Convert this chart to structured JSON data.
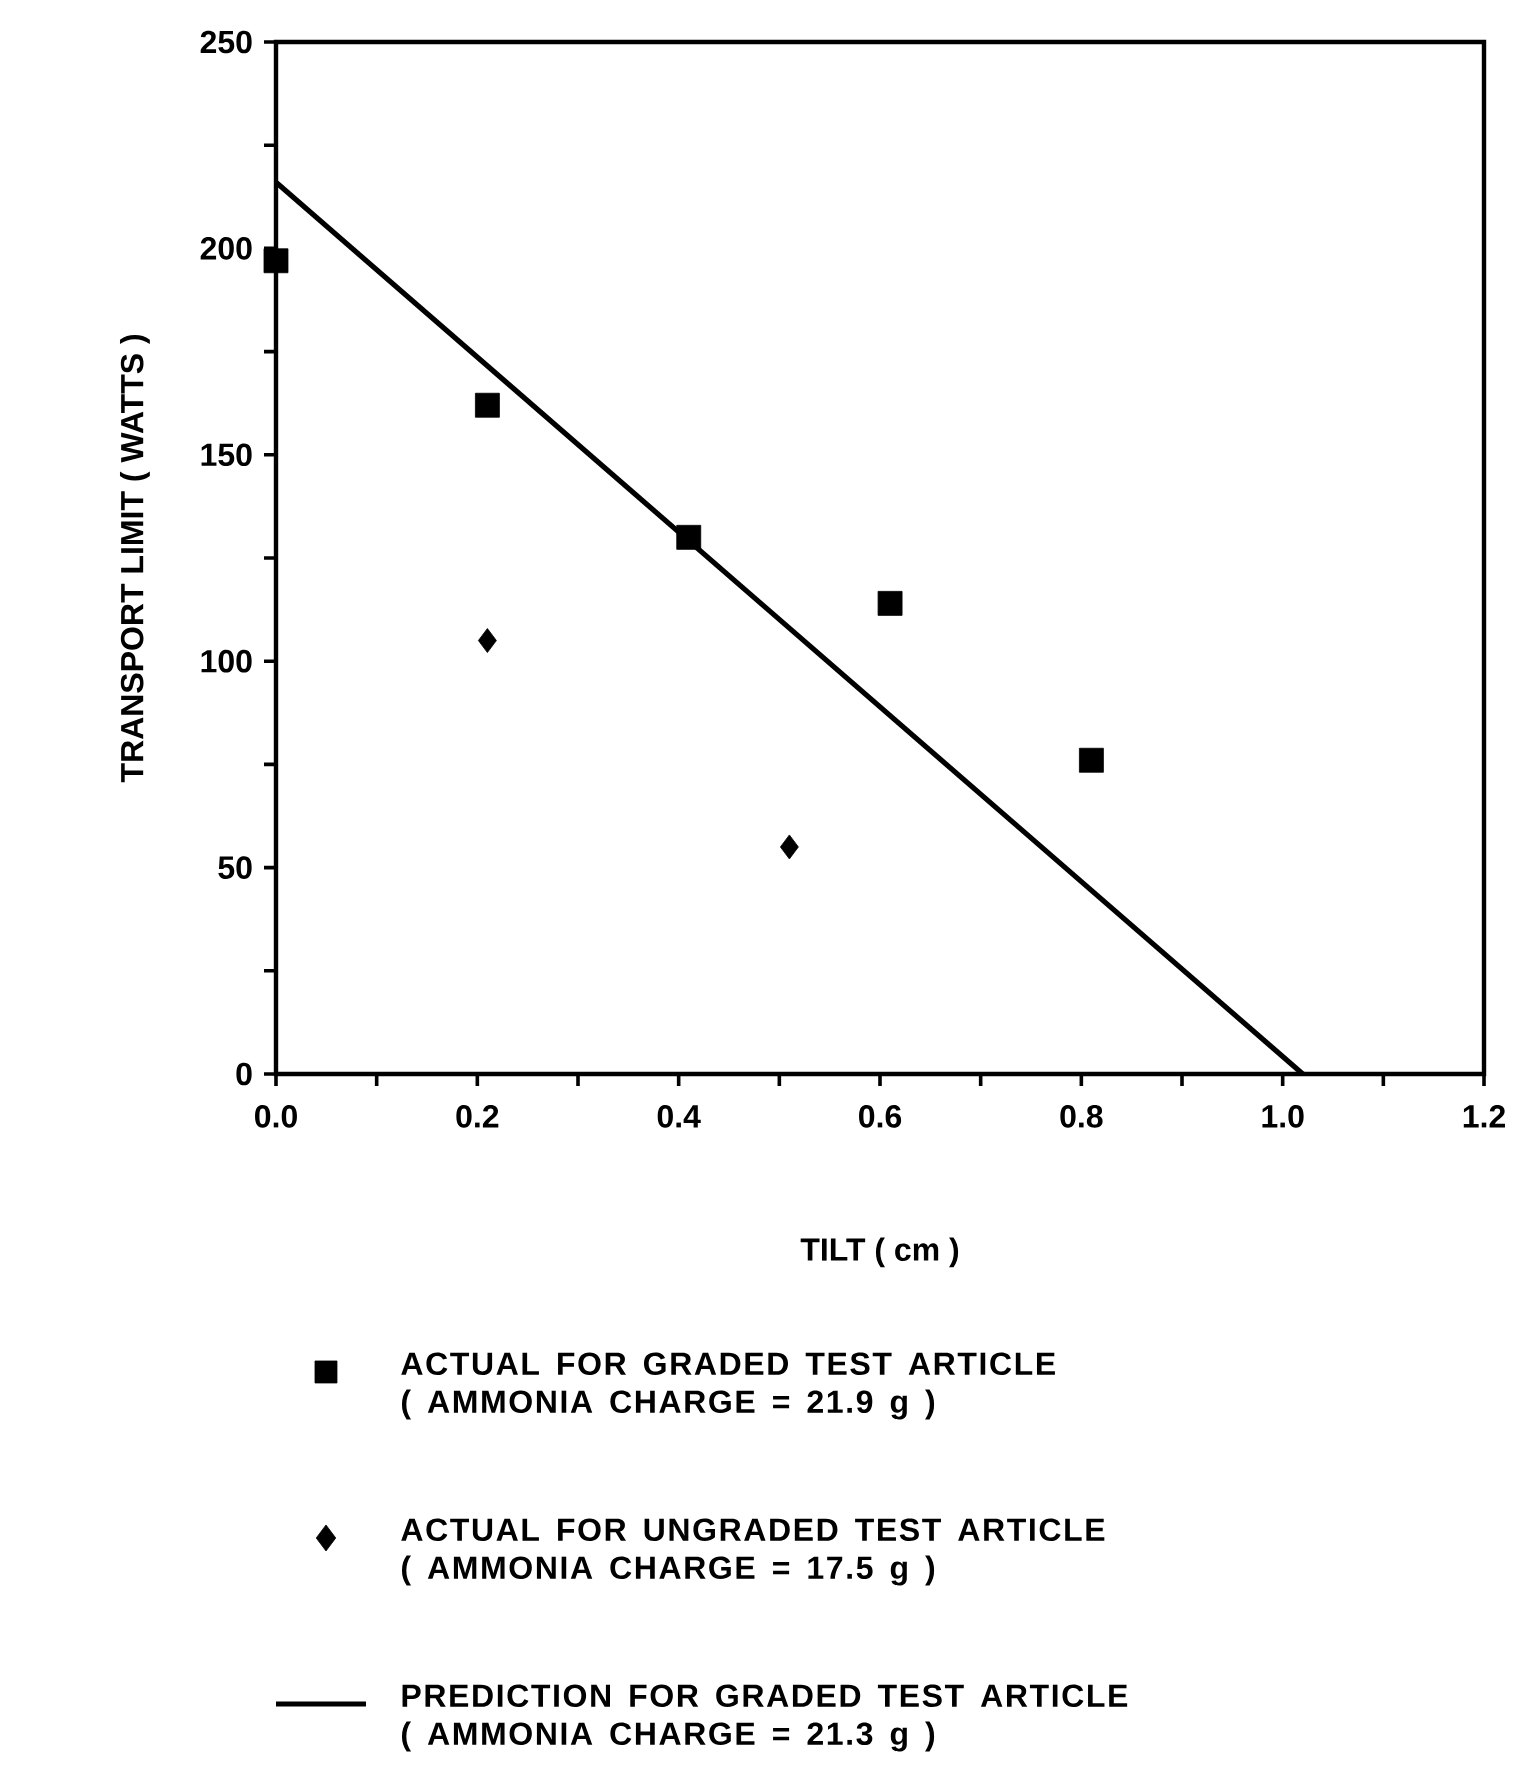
{
  "chart_data": {
    "type": "scatter",
    "xlabel": "TILT ( cm )",
    "ylabel": "TRANSPORT LIMIT ( WATTS )",
    "xlim": [
      0,
      1.2
    ],
    "ylim": [
      0,
      250
    ],
    "xticks": [
      {
        "value": 0,
        "label": "0.0"
      },
      {
        "value": 0.1,
        "label": null
      },
      {
        "value": 0.2,
        "label": "0.2"
      },
      {
        "value": 0.3,
        "label": null
      },
      {
        "value": 0.4,
        "label": "0.4"
      },
      {
        "value": 0.5,
        "label": null
      },
      {
        "value": 0.6,
        "label": "0.6"
      },
      {
        "value": 0.7,
        "label": null
      },
      {
        "value": 0.8,
        "label": "0.8"
      },
      {
        "value": 0.9,
        "label": null
      },
      {
        "value": 1.0,
        "label": "1.0"
      },
      {
        "value": 1.1,
        "label": null
      },
      {
        "value": 1.2,
        "label": "1.2"
      }
    ],
    "yticks": [
      0,
      {
        "value": 25,
        "label": null
      },
      50,
      {
        "value": 75,
        "label": null
      },
      100,
      {
        "value": 125,
        "label": null
      },
      150,
      {
        "value": 175,
        "label": null
      },
      200,
      {
        "value": 225,
        "label": null
      },
      250
    ],
    "grid": false,
    "legend": "bottom",
    "series": [
      {
        "name": "ACTUAL FOR  GRADED TEST ARTICLE ( AMMONIA CHARGE = 21.9 g )",
        "color": "#000000",
        "marker": "square",
        "x": [
          0,
          0.21,
          0.41,
          0.61,
          0.81
        ],
        "values": [
          197,
          162,
          130,
          114,
          76
        ]
      },
      {
        "name": "ACTUAL FOR UNGRADED TEST ARTICLE ( AMMONIA CHARGE = 17.5 g )",
        "color": "#000000",
        "marker": "diamond",
        "x": [
          0.21,
          0.51
        ],
        "values": [
          105,
          55
        ]
      },
      {
        "name": "PREDICTION FOR GRADED TEST ARTICLE ( AMMONIA CHARGE = 21.3 g )",
        "type": "line",
        "color": "#000000",
        "marker": "none",
        "line_style": "solid",
        "x": [
          0,
          1.02
        ],
        "values": [
          216,
          0
        ]
      }
    ]
  }
}
